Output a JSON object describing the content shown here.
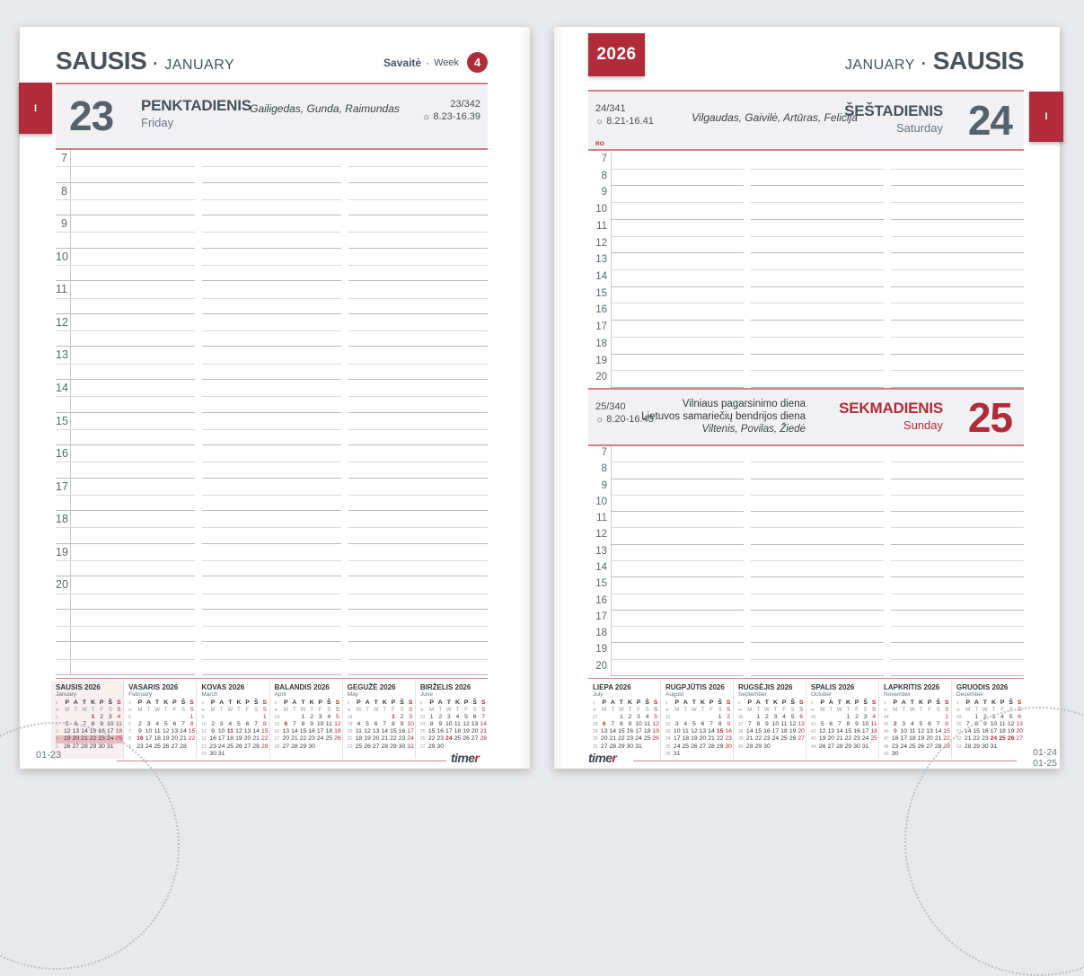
{
  "ui": {
    "dot": "·",
    "sun_icon": "☼"
  },
  "colors": {
    "red": "#b02c3a",
    "slate": "#47525c",
    "number-gray": "#57616c",
    "label-gray": "#5a646e",
    "block-bg": "#f1f1f3",
    "pink-line": "#cf8087",
    "pink-line-soft": "#d4858d",
    "line-dark": "#b7bac0",
    "line-light": "#d9dbdf",
    "jan-bg": "#f8eff1",
    "week-hl": "#e9bac0",
    "muted": "#6a737c"
  },
  "page_left": {
    "tab": "I",
    "title_lt": "SAUSIS",
    "title_en": "JANUARY",
    "week_label_lt": "Savaitė",
    "week_label_en": "Week",
    "week_number": "4",
    "day": {
      "number": "23",
      "name_lt": "PENKTADIENIS",
      "name_en": "Friday",
      "namedays": "Gailigedas, Gunda, Raimundas",
      "day_count": "23/342",
      "sun": "8.23-16.39"
    },
    "hours": [
      "7",
      "8",
      "9",
      "10",
      "11",
      "12",
      "13",
      "14",
      "15",
      "16",
      "17",
      "18",
      "19",
      "20"
    ],
    "extra_rows": 2,
    "footer_code": "01-23",
    "logo": {
      "text": "time",
      "accent": "r"
    }
  },
  "page_right": {
    "tab": "I",
    "year": "2026",
    "title_en": "JANUARY",
    "title_lt": "SAUSIS",
    "day_sat": {
      "number": "24",
      "name_lt": "ŠEŠTADIENIS",
      "name_en": "Saturday",
      "namedays": "Vilgaudas, Gaivilė, Artūras, Felicija",
      "day_count": "24/341",
      "sun": "8.21-16.41",
      "mark": "RO"
    },
    "day_sun": {
      "number": "25",
      "name_lt": "SEKMADIENIS",
      "name_en": "Sunday",
      "holiday1": "Vilniaus pagarsinimo diena",
      "holiday2": "Lietuvos samariečių bendrijos diena",
      "namedays": "Viltenis, Povilas, Žiedė",
      "day_count": "25/340",
      "sun": "8.20-16.43"
    },
    "hours_sat": [
      "7",
      "8",
      "9",
      "10",
      "11",
      "12",
      "13",
      "14",
      "15",
      "16",
      "17",
      "18",
      "19",
      "20"
    ],
    "hours_sun": [
      "7",
      "8",
      "9",
      "10",
      "11",
      "12",
      "13",
      "14",
      "15",
      "16",
      "17",
      "18",
      "19",
      "20"
    ],
    "footer_codes": [
      "01-24",
      "01-25"
    ],
    "logo": {
      "text": "time",
      "accent": "r"
    }
  },
  "minical": {
    "week_col_lt": "s",
    "week_col_en": "w",
    "dow_lt": [
      "P",
      "A",
      "T",
      "K",
      "P",
      "Š",
      "S"
    ],
    "dow_en": [
      "M",
      "T",
      "W",
      "T",
      "F",
      "S",
      "S"
    ],
    "left_months": [
      {
        "title": "SAUSIS 2026",
        "subtitle": "January",
        "current": true,
        "hl_week": 3,
        "week_nums": [
          "1",
          "2",
          "3",
          "4",
          "5"
        ],
        "weeks": [
          [
            "",
            "",
            "",
            "1",
            "2",
            "3",
            "4"
          ],
          [
            "5",
            "6",
            "7",
            "8",
            "9",
            "10",
            "11"
          ],
          [
            "12",
            "13",
            "14",
            "15",
            "16",
            "17",
            "18"
          ],
          [
            "19",
            "20",
            "21",
            "22",
            "23",
            "24",
            "25"
          ],
          [
            "26",
            "27",
            "28",
            "29",
            "30",
            "31",
            ""
          ]
        ],
        "red": [
          1,
          4,
          11,
          18,
          25
        ],
        "bold": [
          1
        ]
      },
      {
        "title": "VASARIS 2026",
        "subtitle": "February",
        "week_nums": [
          "5",
          "6",
          "7",
          "8",
          "9"
        ],
        "weeks": [
          [
            "",
            "",
            "",
            "",
            "",
            "",
            "1"
          ],
          [
            "2",
            "3",
            "4",
            "5",
            "6",
            "7",
            "8"
          ],
          [
            "9",
            "10",
            "11",
            "12",
            "13",
            "14",
            "15"
          ],
          [
            "16",
            "17",
            "18",
            "19",
            "20",
            "21",
            "22"
          ],
          [
            "23",
            "24",
            "25",
            "26",
            "27",
            "28",
            ""
          ]
        ],
        "red": [
          1,
          8,
          15,
          16,
          22
        ],
        "bold": [
          16
        ]
      },
      {
        "title": "KOVAS 2026",
        "subtitle": "March",
        "week_nums": [
          "9",
          "10",
          "11",
          "12",
          "13",
          "14"
        ],
        "weeks": [
          [
            "",
            "",
            "",
            "",
            "",
            "",
            "1"
          ],
          [
            "2",
            "3",
            "4",
            "5",
            "6",
            "7",
            "8"
          ],
          [
            "9",
            "10",
            "11",
            "12",
            "13",
            "14",
            "15"
          ],
          [
            "16",
            "17",
            "18",
            "19",
            "20",
            "21",
            "22"
          ],
          [
            "23",
            "24",
            "25",
            "26",
            "27",
            "28",
            "29"
          ],
          [
            "30",
            "31",
            "",
            "",
            "",
            "",
            ""
          ]
        ],
        "red": [
          1,
          8,
          11,
          15,
          22,
          29
        ],
        "bold": [
          11
        ]
      },
      {
        "title": "BALANDIS 2026",
        "subtitle": "April",
        "week_nums": [
          "14",
          "15",
          "16",
          "17",
          "18"
        ],
        "weeks": [
          [
            "",
            "",
            "1",
            "2",
            "3",
            "4",
            "5"
          ],
          [
            "6",
            "7",
            "8",
            "9",
            "10",
            "11",
            "12"
          ],
          [
            "13",
            "14",
            "15",
            "16",
            "17",
            "18",
            "19"
          ],
          [
            "20",
            "21",
            "22",
            "23",
            "24",
            "25",
            "26"
          ],
          [
            "27",
            "28",
            "29",
            "30",
            "",
            "",
            ""
          ]
        ],
        "red": [
          5,
          6,
          12,
          19,
          26
        ],
        "bold": [
          6
        ]
      },
      {
        "title": "GEGUŽĖ 2026",
        "subtitle": "May",
        "week_nums": [
          "18",
          "19",
          "20",
          "21",
          "22"
        ],
        "weeks": [
          [
            "",
            "",
            "",
            "",
            "1",
            "2",
            "3"
          ],
          [
            "4",
            "5",
            "6",
            "7",
            "8",
            "9",
            "10"
          ],
          [
            "11",
            "12",
            "13",
            "14",
            "15",
            "16",
            "17"
          ],
          [
            "18",
            "19",
            "20",
            "21",
            "22",
            "23",
            "24"
          ],
          [
            "25",
            "26",
            "27",
            "28",
            "29",
            "30",
            "31"
          ]
        ],
        "red": [
          1,
          3,
          10,
          17,
          24,
          31
        ],
        "bold": [
          1
        ]
      },
      {
        "title": "BIRŽELIS 2026",
        "subtitle": "June",
        "week_nums": [
          "23",
          "24",
          "25",
          "26",
          "27"
        ],
        "weeks": [
          [
            "1",
            "2",
            "3",
            "4",
            "5",
            "6",
            "7"
          ],
          [
            "8",
            "9",
            "10",
            "11",
            "12",
            "13",
            "14"
          ],
          [
            "15",
            "16",
            "17",
            "18",
            "19",
            "20",
            "21"
          ],
          [
            "22",
            "23",
            "24",
            "25",
            "26",
            "27",
            "28"
          ],
          [
            "29",
            "30",
            "",
            "",
            "",
            "",
            ""
          ]
        ],
        "red": [
          7,
          14,
          21,
          24,
          28
        ],
        "bold": [
          24
        ]
      }
    ],
    "right_months": [
      {
        "title": "LIEPA 2026",
        "subtitle": "July",
        "week_nums": [
          "27",
          "28",
          "29",
          "30",
          "31"
        ],
        "weeks": [
          [
            "",
            "",
            "1",
            "2",
            "3",
            "4",
            "5"
          ],
          [
            "6",
            "7",
            "8",
            "9",
            "10",
            "11",
            "12"
          ],
          [
            "13",
            "14",
            "15",
            "16",
            "17",
            "18",
            "19"
          ],
          [
            "20",
            "21",
            "22",
            "23",
            "24",
            "25",
            "26"
          ],
          [
            "27",
            "28",
            "29",
            "30",
            "31",
            "",
            ""
          ]
        ],
        "red": [
          5,
          6,
          12,
          19,
          26
        ],
        "bold": [
          6
        ]
      },
      {
        "title": "RUGPJŪTIS 2026",
        "subtitle": "August",
        "week_nums": [
          "31",
          "32",
          "33",
          "34",
          "35",
          "36"
        ],
        "weeks": [
          [
            "",
            "",
            "",
            "",
            "",
            "1",
            "2"
          ],
          [
            "3",
            "4",
            "5",
            "6",
            "7",
            "8",
            "9"
          ],
          [
            "10",
            "11",
            "12",
            "13",
            "14",
            "15",
            "16"
          ],
          [
            "17",
            "18",
            "19",
            "20",
            "21",
            "22",
            "23"
          ],
          [
            "24",
            "25",
            "26",
            "27",
            "28",
            "29",
            "30"
          ],
          [
            "31",
            "",
            "",
            "",
            "",
            "",
            ""
          ]
        ],
        "red": [
          2,
          9,
          15,
          16,
          23,
          30
        ],
        "bold": [
          15
        ]
      },
      {
        "title": "RUGSĖJIS 2026",
        "subtitle": "September",
        "week_nums": [
          "36",
          "37",
          "38",
          "39",
          "40"
        ],
        "weeks": [
          [
            "",
            "1",
            "2",
            "3",
            "4",
            "5",
            "6"
          ],
          [
            "7",
            "8",
            "9",
            "10",
            "11",
            "12",
            "13"
          ],
          [
            "14",
            "15",
            "16",
            "17",
            "18",
            "19",
            "20"
          ],
          [
            "21",
            "22",
            "23",
            "24",
            "25",
            "26",
            "27"
          ],
          [
            "28",
            "29",
            "30",
            "",
            "",
            "",
            ""
          ]
        ],
        "red": [
          6,
          13,
          20,
          27
        ],
        "bold": []
      },
      {
        "title": "SPALIS 2026",
        "subtitle": "October",
        "week_nums": [
          "40",
          "41",
          "42",
          "43",
          "44"
        ],
        "weeks": [
          [
            "",
            "",
            "",
            "1",
            "2",
            "3",
            "4"
          ],
          [
            "5",
            "6",
            "7",
            "8",
            "9",
            "10",
            "11"
          ],
          [
            "12",
            "13",
            "14",
            "15",
            "16",
            "17",
            "18"
          ],
          [
            "19",
            "20",
            "21",
            "22",
            "23",
            "24",
            "25"
          ],
          [
            "26",
            "27",
            "28",
            "29",
            "30",
            "31",
            ""
          ]
        ],
        "red": [
          4,
          11,
          18,
          25
        ],
        "bold": []
      },
      {
        "title": "LAPKRITIS 2026",
        "subtitle": "November",
        "week_nums": [
          "44",
          "45",
          "46",
          "47",
          "48",
          "49"
        ],
        "weeks": [
          [
            "",
            "",
            "",
            "",
            "",
            "",
            "1"
          ],
          [
            "2",
            "3",
            "4",
            "5",
            "6",
            "7",
            "8"
          ],
          [
            "9",
            "10",
            "11",
            "12",
            "13",
            "14",
            "15"
          ],
          [
            "16",
            "17",
            "18",
            "19",
            "20",
            "21",
            "22"
          ],
          [
            "23",
            "24",
            "25",
            "26",
            "27",
            "28",
            "29"
          ],
          [
            "30",
            "",
            "",
            "",
            "",
            "",
            ""
          ]
        ],
        "red": [
          1,
          2,
          8,
          15,
          22,
          29
        ],
        "bold": [
          2
        ]
      },
      {
        "title": "GRUODIS 2026",
        "subtitle": "December",
        "week_nums": [
          "49",
          "50",
          "51",
          "52",
          "53"
        ],
        "weeks": [
          [
            "",
            "1",
            "2",
            "3",
            "4",
            "5",
            "6"
          ],
          [
            "7",
            "8",
            "9",
            "10",
            "11",
            "12",
            "13"
          ],
          [
            "14",
            "15",
            "16",
            "17",
            "18",
            "19",
            "20"
          ],
          [
            "21",
            "22",
            "23",
            "24",
            "25",
            "26",
            "27"
          ],
          [
            "28",
            "29",
            "30",
            "31",
            "",
            "",
            ""
          ]
        ],
        "red": [
          6,
          13,
          20,
          24,
          25,
          26,
          27
        ],
        "bold": [
          24,
          25,
          26
        ]
      }
    ]
  }
}
